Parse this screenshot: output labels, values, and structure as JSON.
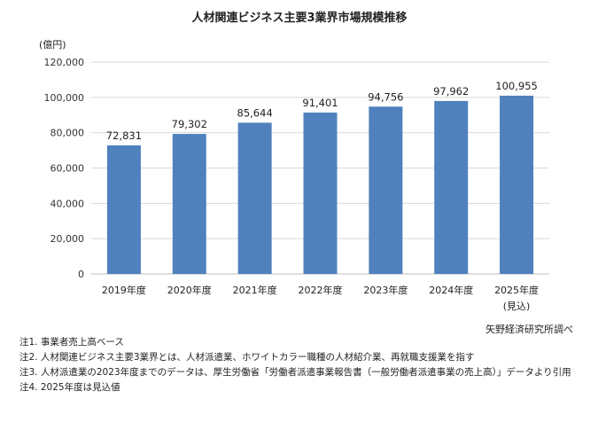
{
  "chart_data": {
    "type": "bar",
    "title": "人材関連ビジネス主要3業界市場規模推移",
    "ylabel": "(億円)",
    "xlabel": "",
    "categories": [
      "2019年度",
      "2020年度",
      "2021年度",
      "2022年度",
      "2023年度",
      "2024年度",
      "2025年度"
    ],
    "category_sublabels": [
      "",
      "",
      "",
      "",
      "",
      "",
      "(見込)"
    ],
    "values": [
      72831,
      79302,
      85644,
      91401,
      94756,
      97962,
      100955
    ],
    "value_labels": [
      "72,831",
      "79,302",
      "85,644",
      "91,401",
      "94,756",
      "97,962",
      "100,955"
    ],
    "ylim": [
      0,
      120000
    ],
    "yticks": [
      0,
      20000,
      40000,
      60000,
      80000,
      100000,
      120000
    ],
    "ytick_labels": [
      "0",
      "20,000",
      "40,000",
      "60,000",
      "80,000",
      "100,000",
      "120,000"
    ],
    "grid": true,
    "bar_color": "#4f81bd",
    "grid_color": "#d9d9d9"
  },
  "source": "矢野経済研究所調べ",
  "notes": [
    "注1.  事業者売上高ベース",
    "注2.  人材関連ビジネス主要3業界とは、人材派遣業、ホワイトカラー職種の人材紹介業、再就職支援業を指す",
    "注3.  人材派遣業の2023年度までのデータは、厚生労働省「労働者派遣事業報告書（一般労働者派遣事業の売上高）」データより引用",
    "注4.  2025年度は見込値"
  ]
}
